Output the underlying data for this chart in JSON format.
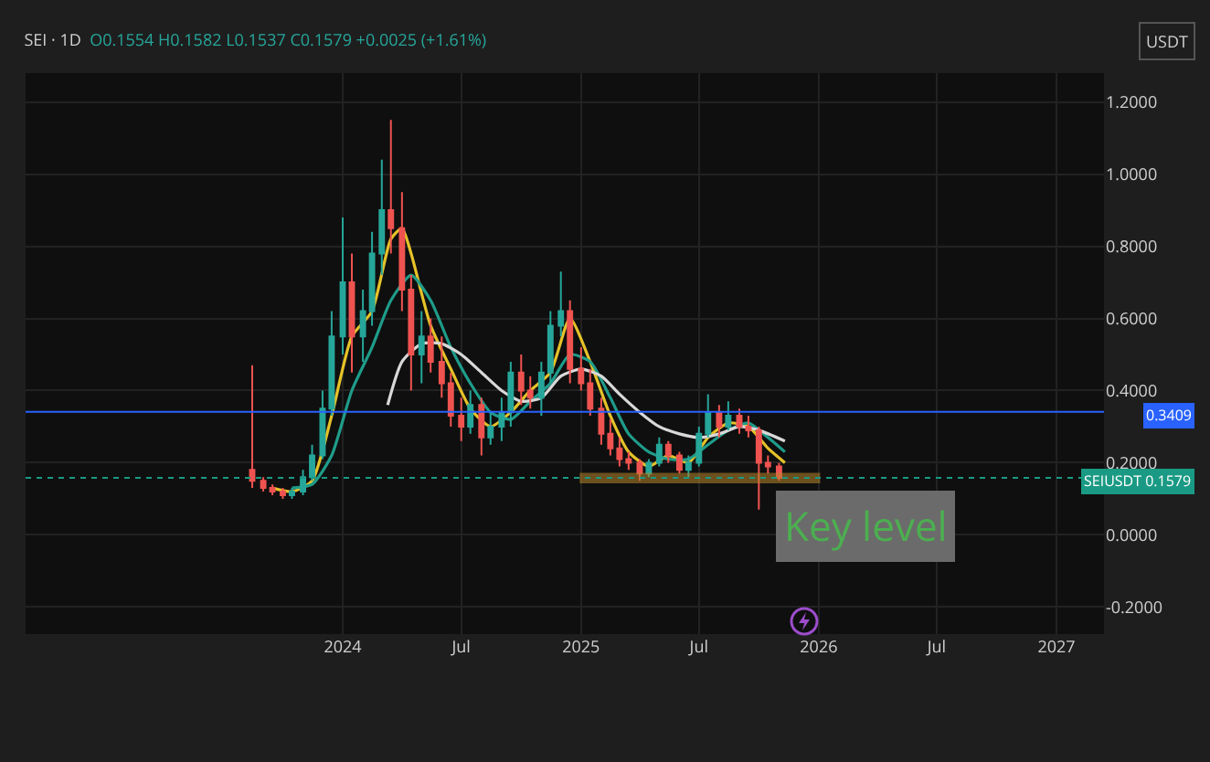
{
  "chart_data": {
    "type": "candlestick",
    "title": "SEI · 1D",
    "subtitle": "O0.1554 H0.1582 L0.1537 C0.1579 +0.0025 (+1.61%)",
    "x": [
      "2023-08-15",
      "2023-09-01",
      "2023-09-15",
      "2023-10-01",
      "2023-10-15",
      "2023-11-01",
      "2023-11-15",
      "2023-12-01",
      "2023-12-15",
      "2024-01-01",
      "2024-01-15",
      "2024-02-01",
      "2024-02-15",
      "2024-03-01",
      "2024-03-15",
      "2024-04-01",
      "2024-04-15",
      "2024-05-01",
      "2024-05-15",
      "2024-06-01",
      "2024-06-15",
      "2024-07-01",
      "2024-07-15",
      "2024-08-01",
      "2024-08-15",
      "2024-09-01",
      "2024-09-15",
      "2024-10-01",
      "2024-10-15",
      "2024-11-01",
      "2024-11-15",
      "2024-12-01",
      "2024-12-15",
      "2025-01-01",
      "2025-01-15",
      "2025-02-01",
      "2025-02-15",
      "2025-03-01",
      "2025-03-15",
      "2025-04-01",
      "2025-04-15",
      "2025-05-01",
      "2025-05-15",
      "2025-06-01",
      "2025-06-15",
      "2025-07-01",
      "2025-07-15",
      "2025-08-01",
      "2025-08-15",
      "2025-09-01",
      "2025-09-15",
      "2025-10-01",
      "2025-10-15",
      "2025-11-01"
    ],
    "ohlc": [
      [
        0.18,
        0.47,
        0.13,
        0.15
      ],
      [
        0.15,
        0.16,
        0.12,
        0.13
      ],
      [
        0.13,
        0.14,
        0.11,
        0.12
      ],
      [
        0.12,
        0.13,
        0.1,
        0.11
      ],
      [
        0.11,
        0.13,
        0.1,
        0.12
      ],
      [
        0.12,
        0.18,
        0.11,
        0.16
      ],
      [
        0.16,
        0.25,
        0.15,
        0.22
      ],
      [
        0.22,
        0.4,
        0.21,
        0.35
      ],
      [
        0.35,
        0.62,
        0.33,
        0.55
      ],
      [
        0.55,
        0.88,
        0.5,
        0.7
      ],
      [
        0.7,
        0.78,
        0.45,
        0.55
      ],
      [
        0.55,
        0.68,
        0.48,
        0.62
      ],
      [
        0.62,
        0.84,
        0.58,
        0.78
      ],
      [
        0.78,
        1.04,
        0.72,
        0.9
      ],
      [
        0.9,
        1.15,
        0.78,
        0.85
      ],
      [
        0.85,
        0.95,
        0.62,
        0.68
      ],
      [
        0.68,
        0.72,
        0.4,
        0.5
      ],
      [
        0.5,
        0.62,
        0.42,
        0.55
      ],
      [
        0.55,
        0.6,
        0.45,
        0.48
      ],
      [
        0.48,
        0.55,
        0.38,
        0.42
      ],
      [
        0.42,
        0.45,
        0.3,
        0.33
      ],
      [
        0.33,
        0.38,
        0.26,
        0.3
      ],
      [
        0.3,
        0.4,
        0.28,
        0.36
      ],
      [
        0.36,
        0.38,
        0.22,
        0.27
      ],
      [
        0.27,
        0.34,
        0.25,
        0.3
      ],
      [
        0.3,
        0.38,
        0.26,
        0.34
      ],
      [
        0.34,
        0.48,
        0.3,
        0.45
      ],
      [
        0.45,
        0.5,
        0.36,
        0.4
      ],
      [
        0.4,
        0.44,
        0.35,
        0.38
      ],
      [
        0.38,
        0.48,
        0.33,
        0.45
      ],
      [
        0.45,
        0.62,
        0.42,
        0.58
      ],
      [
        0.58,
        0.73,
        0.55,
        0.62
      ],
      [
        0.62,
        0.65,
        0.42,
        0.46
      ],
      [
        0.46,
        0.52,
        0.4,
        0.42
      ],
      [
        0.42,
        0.46,
        0.33,
        0.35
      ],
      [
        0.35,
        0.38,
        0.25,
        0.28
      ],
      [
        0.28,
        0.32,
        0.22,
        0.24
      ],
      [
        0.24,
        0.27,
        0.19,
        0.21
      ],
      [
        0.21,
        0.23,
        0.18,
        0.2
      ],
      [
        0.2,
        0.21,
        0.15,
        0.17
      ],
      [
        0.17,
        0.21,
        0.16,
        0.2
      ],
      [
        0.2,
        0.27,
        0.19,
        0.25
      ],
      [
        0.25,
        0.26,
        0.2,
        0.22
      ],
      [
        0.22,
        0.23,
        0.17,
        0.18
      ],
      [
        0.18,
        0.22,
        0.16,
        0.2
      ],
      [
        0.2,
        0.3,
        0.19,
        0.28
      ],
      [
        0.28,
        0.39,
        0.27,
        0.34
      ],
      [
        0.34,
        0.36,
        0.27,
        0.3
      ],
      [
        0.3,
        0.37,
        0.29,
        0.33
      ],
      [
        0.33,
        0.35,
        0.28,
        0.3
      ],
      [
        0.3,
        0.33,
        0.27,
        0.29
      ],
      [
        0.29,
        0.3,
        0.07,
        0.2
      ],
      [
        0.2,
        0.22,
        0.17,
        0.19
      ],
      [
        0.19,
        0.2,
        0.15,
        0.1579
      ]
    ],
    "series": [
      {
        "type": "line",
        "color": "#e6c229",
        "x": [
          "2023-09-15",
          "2023-10-15",
          "2023-11-15",
          "2023-12-15",
          "2024-01-15",
          "2024-02-15",
          "2024-03-15",
          "2024-04-01",
          "2024-04-15",
          "2024-05-15",
          "2024-06-15",
          "2024-07-15",
          "2024-08-15",
          "2024-09-15",
          "2024-10-15",
          "2024-11-15",
          "2024-12-15",
          "2025-01-15",
          "2025-02-15",
          "2025-03-15",
          "2025-04-15",
          "2025-05-15",
          "2025-06-15",
          "2025-07-15",
          "2025-08-15",
          "2025-09-15",
          "2025-10-15",
          "2025-11-10"
        ],
        "values": [
          0.13,
          0.12,
          0.15,
          0.33,
          0.55,
          0.62,
          0.82,
          0.85,
          0.78,
          0.58,
          0.46,
          0.35,
          0.3,
          0.34,
          0.4,
          0.45,
          0.6,
          0.48,
          0.33,
          0.23,
          0.19,
          0.22,
          0.2,
          0.27,
          0.31,
          0.3,
          0.24,
          0.2
        ]
      },
      {
        "type": "line",
        "color": "#1f9c8a",
        "x": [
          "2023-10-15",
          "2023-11-15",
          "2023-12-15",
          "2024-01-15",
          "2024-02-15",
          "2024-03-15",
          "2024-04-15",
          "2024-05-15",
          "2024-06-15",
          "2024-07-15",
          "2024-08-15",
          "2024-09-15",
          "2024-10-15",
          "2024-11-15",
          "2024-12-15",
          "2025-01-15",
          "2025-02-15",
          "2025-03-15",
          "2025-04-15",
          "2025-05-15",
          "2025-06-15",
          "2025-07-15",
          "2025-08-15",
          "2025-09-15",
          "2025-10-15",
          "2025-11-10"
        ],
        "values": [
          0.13,
          0.14,
          0.22,
          0.4,
          0.52,
          0.65,
          0.72,
          0.65,
          0.52,
          0.42,
          0.34,
          0.32,
          0.37,
          0.42,
          0.5,
          0.48,
          0.38,
          0.28,
          0.23,
          0.21,
          0.21,
          0.25,
          0.29,
          0.31,
          0.27,
          0.23
        ]
      },
      {
        "type": "line",
        "color": "#d8d8d8",
        "x": [
          "2024-03-10",
          "2024-04-01",
          "2024-05-01",
          "2024-06-01",
          "2024-07-01",
          "2024-08-01",
          "2024-09-01",
          "2024-10-01",
          "2024-11-01",
          "2024-12-01",
          "2025-01-01",
          "2025-02-01",
          "2025-03-01",
          "2025-04-01",
          "2025-05-01",
          "2025-06-01",
          "2025-07-01",
          "2025-08-01",
          "2025-09-01",
          "2025-10-01",
          "2025-11-10"
        ],
        "values": [
          0.36,
          0.48,
          0.53,
          0.53,
          0.5,
          0.45,
          0.4,
          0.37,
          0.38,
          0.44,
          0.46,
          0.44,
          0.39,
          0.34,
          0.3,
          0.28,
          0.27,
          0.28,
          0.3,
          0.29,
          0.26
        ]
      }
    ],
    "xlim": [
      "2022-09-01",
      "2027-03-15"
    ],
    "xticks": [
      {
        "value": "2024-01-01",
        "label": "2024"
      },
      {
        "value": "2024-07-01",
        "label": "Jul"
      },
      {
        "value": "2025-01-01",
        "label": "2025"
      },
      {
        "value": "2025-07-01",
        "label": "Jul"
      },
      {
        "value": "2026-01-01",
        "label": "2026"
      },
      {
        "value": "2026-07-01",
        "label": "Jul"
      },
      {
        "value": "2027-01-01",
        "label": "2027"
      }
    ],
    "ylim": [
      -0.275,
      1.28
    ],
    "yticks": [
      {
        "value": -0.2,
        "label": "-0.2000"
      },
      {
        "value": 0,
        "label": "0.0000"
      },
      {
        "value": 0.2,
        "label": "0.2000"
      },
      {
        "value": 0.4,
        "label": "0.4000"
      },
      {
        "value": 0.6,
        "label": "0.6000"
      },
      {
        "value": 0.8,
        "label": "0.8000"
      },
      {
        "value": 1.0,
        "label": "1.0000"
      },
      {
        "value": 1.2,
        "label": "1.2000"
      }
    ],
    "ref_lines": [
      {
        "axis": "y",
        "value": 0.3409,
        "label": "0.3409",
        "color": "#2962ff",
        "line_style": "solid"
      },
      {
        "axis": "y",
        "value": 0.1579,
        "label": "SEIUSDT 0.1579",
        "color": "#1a9a84",
        "line_style": "dotted"
      }
    ],
    "bands": [
      {
        "axis": "y",
        "from": 0.147,
        "to": 0.168,
        "label": "Key level",
        "color": "#b8862b"
      }
    ],
    "annotations": [
      "USDT"
    ],
    "grid": true
  }
}
